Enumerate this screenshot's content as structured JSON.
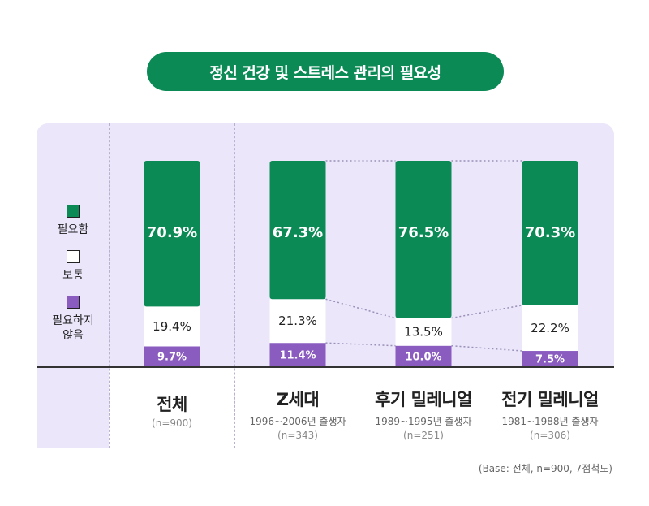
{
  "title": "정신 건강 및 스트레스 관리의 필요성",
  "colors": {
    "need": "#0b8a55",
    "neutral": "#ffffff",
    "no_need": "#8a5cc0",
    "panel": "#ebe6fa"
  },
  "legend": [
    {
      "label": "필요함",
      "color": "#0b8a55"
    },
    {
      "label": "보통",
      "color": "#ffffff"
    },
    {
      "label": "필요하지\n않음",
      "color": "#8a5cc0"
    }
  ],
  "chart_data": {
    "type": "bar",
    "stacked": true,
    "categories": [
      "전체",
      "Z세대",
      "후기 밀레니얼",
      "전기 밀레니얼"
    ],
    "series": [
      {
        "name": "필요하지 않음",
        "values": [
          9.7,
          11.4,
          10.0,
          7.5
        ],
        "labels": [
          "9.7%",
          "11.4%",
          "10.0%",
          "7.5%"
        ]
      },
      {
        "name": "보통",
        "values": [
          19.4,
          21.3,
          13.5,
          22.2
        ],
        "labels": [
          "19.4%",
          "21.3%",
          "13.5%",
          "22.2%"
        ]
      },
      {
        "name": "필요함",
        "values": [
          70.9,
          67.3,
          76.5,
          70.3
        ],
        "labels": [
          "70.9%",
          "67.3%",
          "76.5%",
          "70.3%"
        ]
      }
    ],
    "ylim": [
      0,
      100
    ]
  },
  "categories_meta": [
    {
      "name": "전체",
      "sub": "",
      "n": "(n=900)"
    },
    {
      "name": "Z세대",
      "sub": "1996~2006년 출생자",
      "n": "(n=343)"
    },
    {
      "name": "후기 밀레니얼",
      "sub": "1989~1995년 출생자",
      "n": "(n=251)"
    },
    {
      "name": "전기 밀레니얼",
      "sub": "1981~1988년 출생자",
      "n": "(n=306)"
    }
  ],
  "footnote": "(Base: 전체, n=900, 7점척도)"
}
